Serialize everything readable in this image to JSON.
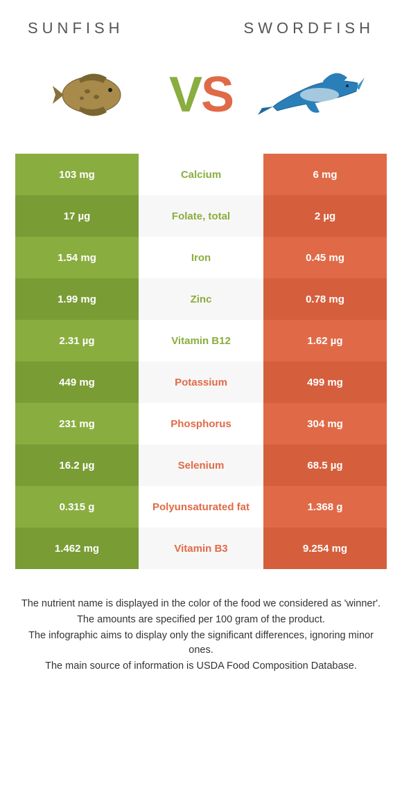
{
  "title_left": "SUNFISH",
  "title_right": "SWORDFISH",
  "colors": {
    "left": "#8aad3f",
    "right": "#e06a47",
    "left_alt": "#7a9c35",
    "right_alt": "#d55f3d",
    "mid_bg": "#ffffff",
    "mid_bg_alt": "#f7f7f7"
  },
  "vs": {
    "v": "V",
    "s": "S"
  },
  "rows": [
    {
      "left": "103 mg",
      "label": "Calcium",
      "right": "6 mg",
      "winner": "left"
    },
    {
      "left": "17 µg",
      "label": "Folate, total",
      "right": "2 µg",
      "winner": "left"
    },
    {
      "left": "1.54 mg",
      "label": "Iron",
      "right": "0.45 mg",
      "winner": "left"
    },
    {
      "left": "1.99 mg",
      "label": "Zinc",
      "right": "0.78 mg",
      "winner": "left"
    },
    {
      "left": "2.31 µg",
      "label": "Vitamin B12",
      "right": "1.62 µg",
      "winner": "left"
    },
    {
      "left": "449 mg",
      "label": "Potassium",
      "right": "499 mg",
      "winner": "right"
    },
    {
      "left": "231 mg",
      "label": "Phosphorus",
      "right": "304 mg",
      "winner": "right"
    },
    {
      "left": "16.2 µg",
      "label": "Selenium",
      "right": "68.5 µg",
      "winner": "right"
    },
    {
      "left": "0.315 g",
      "label": "Polyunsaturated fat",
      "right": "1.368 g",
      "winner": "right"
    },
    {
      "left": "1.462 mg",
      "label": "Vitamin B3",
      "right": "9.254 mg",
      "winner": "right"
    }
  ],
  "notes": [
    "The nutrient name is displayed in the color of the food we considered as 'winner'.",
    "The amounts are specified per 100 gram of the product.",
    "The infographic aims to display only the significant differences, ignoring minor ones.",
    "The main source of information is USDA Food Composition Database."
  ]
}
